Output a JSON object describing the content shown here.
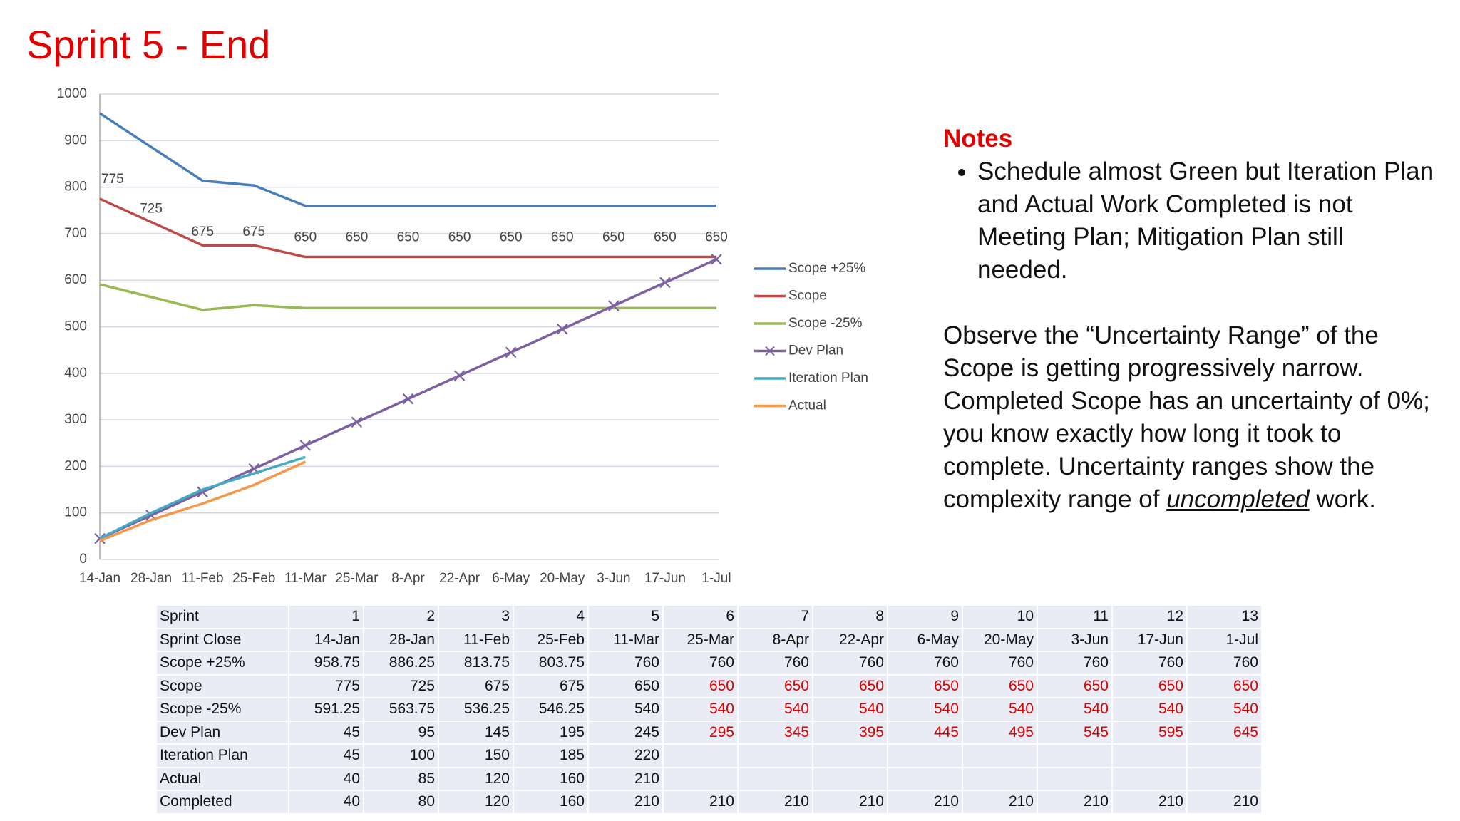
{
  "title": "Sprint 5 - End",
  "chart_data": {
    "type": "line",
    "categories": [
      "14-Jan",
      "28-Jan",
      "11-Feb",
      "25-Feb",
      "11-Mar",
      "25-Mar",
      "8-Apr",
      "22-Apr",
      "6-May",
      "20-May",
      "3-Jun",
      "17-Jun",
      "1-Jul"
    ],
    "series": [
      {
        "name": "Scope +25%",
        "color": "#4a7ebb",
        "values": [
          958.75,
          886.25,
          813.75,
          803.75,
          760,
          760,
          760,
          760,
          760,
          760,
          760,
          760,
          760
        ]
      },
      {
        "name": "Scope",
        "color": "#be4b48",
        "values": [
          775,
          725,
          675,
          675,
          650,
          650,
          650,
          650,
          650,
          650,
          650,
          650,
          650
        ],
        "data_labels": true
      },
      {
        "name": "Scope -25%",
        "color": "#98b954",
        "values": [
          591.25,
          563.75,
          536.25,
          546.25,
          540,
          540,
          540,
          540,
          540,
          540,
          540,
          540,
          540
        ]
      },
      {
        "name": "Dev Plan",
        "color": "#7d60a0",
        "marker": "x",
        "values": [
          45,
          95,
          145,
          195,
          245,
          295,
          345,
          395,
          445,
          495,
          545,
          595,
          645
        ]
      },
      {
        "name": "Iteration Plan",
        "color": "#46aac5",
        "values": [
          45,
          100,
          150,
          185,
          220,
          null,
          null,
          null,
          null,
          null,
          null,
          null,
          null
        ]
      },
      {
        "name": "Actual",
        "color": "#f79646",
        "values": [
          40,
          85,
          120,
          160,
          210,
          null,
          null,
          null,
          null,
          null,
          null,
          null,
          null
        ]
      }
    ],
    "ylim": [
      0,
      1000
    ],
    "yticks": [
      0,
      100,
      200,
      300,
      400,
      500,
      600,
      700,
      800,
      900,
      1000
    ],
    "grid": true,
    "legend": "right"
  },
  "notes": {
    "heading": "Notes",
    "bullet": "Schedule almost Green but Iteration Plan and Actual Work Completed is not Meeting Plan; Mitigation Plan still needed.",
    "paragraph": {
      "before": "Observe the “Uncertainty Range” of the Scope is getting progressively narrow. Completed Scope has an uncertainty of 0%; you know exactly how long it took to complete.  Uncertainty ranges show the complexity range of ",
      "emphasis": "uncompleted",
      "after": " work."
    }
  },
  "table": {
    "header": [
      "Sprint",
      "1",
      "2",
      "3",
      "4",
      "5",
      "6",
      "7",
      "8",
      "9",
      "10",
      "11",
      "12",
      "13"
    ],
    "rows": [
      [
        "Sprint Close",
        "14-Jan",
        "28-Jan",
        "11-Feb",
        "25-Feb",
        "11-Mar",
        "25-Mar",
        "8-Apr",
        "22-Apr",
        "6-May",
        "20-May",
        "3-Jun",
        "17-Jun",
        "1-Jul"
      ],
      [
        "Scope +25%",
        958.75,
        886.25,
        813.75,
        803.75,
        760,
        760,
        760,
        760,
        760,
        760,
        760,
        760,
        760
      ],
      [
        "Scope",
        775,
        725,
        675,
        675,
        650,
        650,
        650,
        650,
        650,
        650,
        650,
        650,
        650
      ],
      [
        "Scope -25%",
        591.25,
        563.75,
        536.25,
        546.25,
        540,
        540,
        540,
        540,
        540,
        540,
        540,
        540,
        540
      ],
      [
        "Dev Plan",
        45,
        95,
        145,
        195,
        245,
        295,
        345,
        395,
        445,
        495,
        545,
        595,
        645
      ],
      [
        "Iteration Plan",
        45,
        100,
        150,
        185,
        220,
        null,
        null,
        null,
        null,
        null,
        null,
        null,
        null
      ],
      [
        "Actual",
        40,
        85,
        120,
        160,
        210,
        null,
        null,
        null,
        null,
        null,
        null,
        null,
        null
      ],
      [
        "Completed",
        40,
        80,
        120,
        160,
        210,
        210,
        210,
        210,
        210,
        210,
        210,
        210,
        210
      ]
    ]
  }
}
